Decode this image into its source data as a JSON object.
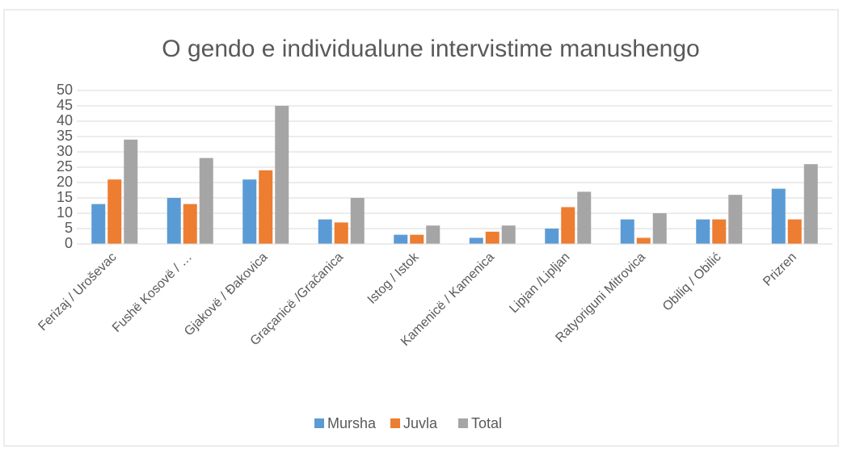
{
  "chart_data": {
    "type": "bar",
    "title": "O gendo e individualune intervistime manushengo",
    "categories": [
      "Ferizaj / Uroševac",
      "Fushë Kosovë / …",
      "Gjakovë / Đakovica",
      "Graçanicë /Gračanica",
      "Istog / Istok",
      "Kamenicë / Kamenica",
      "Lipjan /Lipljan",
      "Ratyoriguni Mitrovica",
      "Obiliq / Obilić",
      "Prizren"
    ],
    "series": [
      {
        "name": "Mursha",
        "color": "#5b9bd5",
        "values": [
          13,
          15,
          21,
          8,
          3,
          2,
          5,
          8,
          8,
          18
        ]
      },
      {
        "name": "Juvla",
        "color": "#ed7d31",
        "values": [
          21,
          13,
          24,
          7,
          3,
          4,
          12,
          2,
          8,
          8
        ]
      },
      {
        "name": "Total",
        "color": "#a5a5a5",
        "values": [
          34,
          28,
          45,
          15,
          6,
          6,
          17,
          10,
          16,
          26
        ]
      }
    ],
    "ylim": [
      0,
      50
    ],
    "yticks": [
      0,
      5,
      10,
      15,
      20,
      25,
      30,
      35,
      40,
      45,
      50
    ],
    "grid": true,
    "legend": "bottom"
  }
}
